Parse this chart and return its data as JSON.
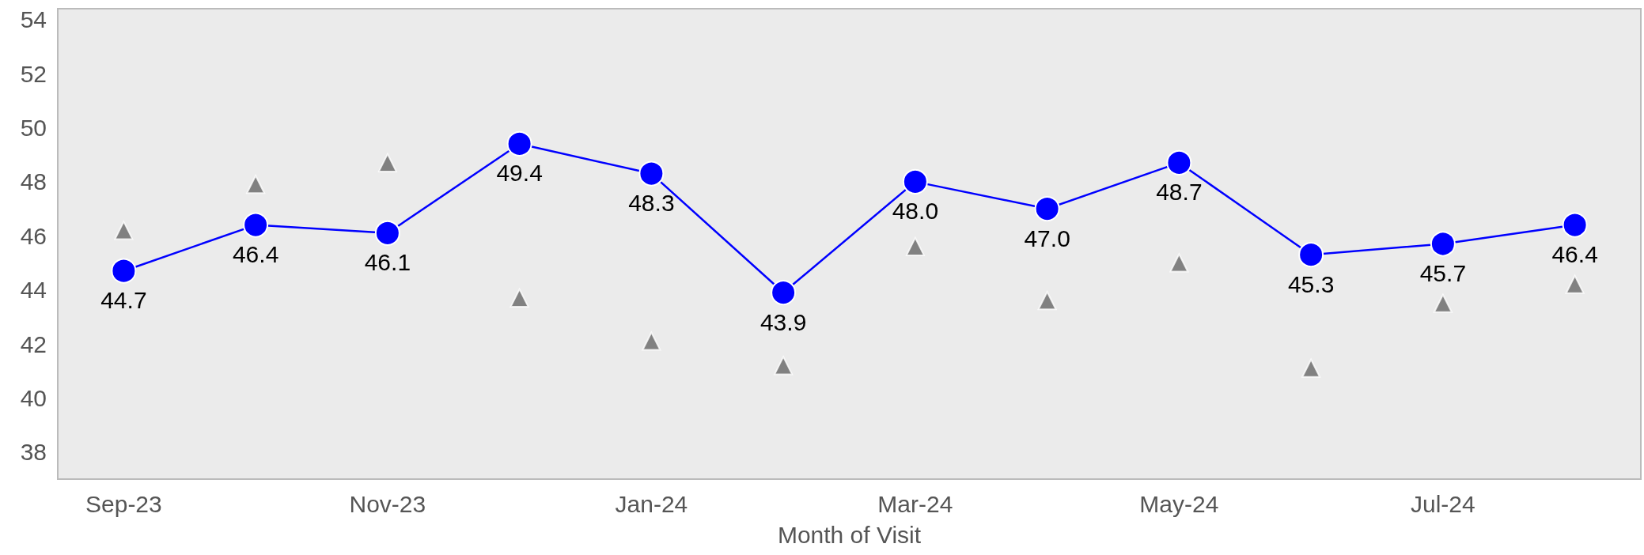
{
  "chart_data": {
    "type": "line",
    "xlabel": "Month of Visit",
    "categories": [
      "Sep-23",
      null,
      "Nov-23",
      null,
      "Jan-24",
      null,
      "Mar-24",
      null,
      "May-24",
      null,
      "Jul-24",
      null
    ],
    "series": [
      {
        "color": "#0000ff",
        "marker": "circle",
        "line_style": "solid",
        "values": [
          44.7,
          46.4,
          46.1,
          49.4,
          48.3,
          43.9,
          48.0,
          47.0,
          48.7,
          45.3,
          45.7,
          46.4
        ],
        "value_labels": [
          "44.7",
          "46.4",
          "46.1",
          "49.4",
          "48.3",
          "43.9",
          "48.0",
          "47.0",
          "48.7",
          "45.3",
          "45.7",
          "46.4"
        ]
      },
      {
        "type": "scatter",
        "color": "#666666",
        "marker": "triangle",
        "values": [
          46.2,
          47.9,
          48.7,
          43.7,
          42.1,
          41.2,
          45.6,
          43.6,
          45.0,
          41.1,
          43.5,
          44.2
        ]
      }
    ],
    "ylim": [
      37,
      54.4
    ],
    "yticks": [
      38,
      40,
      42,
      44,
      46,
      48,
      50,
      52,
      54
    ],
    "grid": false
  }
}
